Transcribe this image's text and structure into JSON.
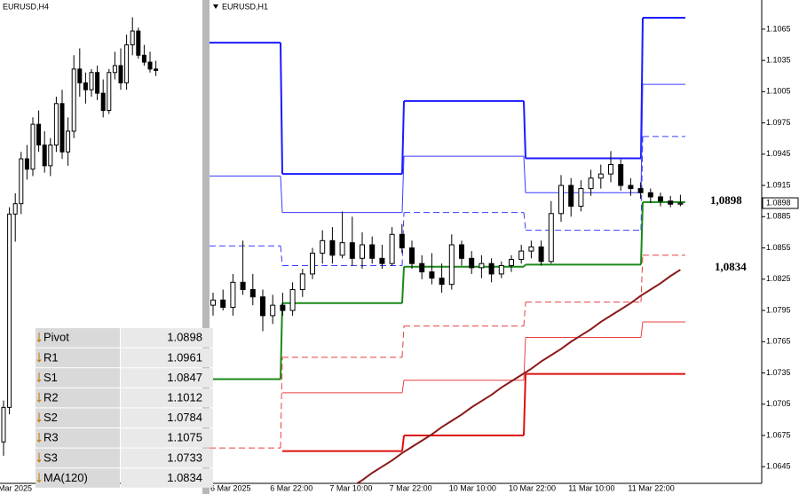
{
  "chart_data": [
    {
      "type": "candlestick",
      "title": "EURUSD,H4",
      "categories": [
        "Mar 2025",
        null,
        null,
        null,
        null,
        null,
        null,
        null,
        null,
        null,
        null,
        null,
        null,
        null,
        null,
        null,
        null,
        null,
        null,
        null,
        null,
        null,
        null,
        null,
        null,
        null,
        null
      ],
      "open": [
        1.036,
        1.041,
        1.069,
        1.0705,
        1.077,
        1.0755,
        1.082,
        1.079,
        1.076,
        1.079,
        1.085,
        1.078,
        1.081,
        1.09,
        1.088,
        1.087,
        1.0895,
        1.0865,
        1.084,
        1.0895,
        1.0905,
        1.088,
        1.0935,
        1.0955,
        1.092,
        1.091,
        1.09
      ],
      "high": [
        1.042,
        1.07,
        1.072,
        1.078,
        1.079,
        1.083,
        1.084,
        1.081,
        1.08,
        1.086,
        1.087,
        1.083,
        1.092,
        1.093,
        1.0895,
        1.09,
        1.0905,
        1.0885,
        1.09,
        1.0925,
        1.093,
        1.095,
        1.0975,
        1.096,
        1.0935,
        1.0925,
        1.0912
      ],
      "low": [
        1.034,
        1.04,
        1.065,
        1.069,
        1.074,
        1.0745,
        1.078,
        1.075,
        1.0745,
        1.078,
        1.077,
        1.076,
        1.08,
        1.086,
        1.085,
        1.086,
        1.0855,
        1.083,
        1.0835,
        1.0885,
        1.087,
        1.087,
        1.092,
        1.0915,
        1.0905,
        1.0895,
        1.089
      ],
      "close": [
        1.041,
        1.069,
        1.0705,
        1.077,
        1.0755,
        1.082,
        1.079,
        1.076,
        1.079,
        1.085,
        1.078,
        1.081,
        1.09,
        1.088,
        1.087,
        1.0895,
        1.0865,
        1.084,
        1.0895,
        1.0905,
        1.088,
        1.0935,
        1.0955,
        1.092,
        1.091,
        1.09,
        1.0898
      ],
      "ylim": [
        1.03,
        1.1
      ]
    },
    {
      "type": "candlestick",
      "title": "EURUSD,H1",
      "categories": [
        "6 Mar 2025",
        null,
        null,
        null,
        null,
        null,
        "6 Mar 22:00",
        null,
        null,
        null,
        null,
        null,
        "7 Mar 10:00",
        null,
        null,
        null,
        null,
        null,
        "7 Mar 22:00",
        null,
        null,
        null,
        null,
        null,
        "10 Mar 10:00",
        null,
        null,
        null,
        null,
        null,
        "10 Mar 22:00",
        null,
        null,
        null,
        null,
        null,
        "11 Mar 10:00",
        null,
        null,
        null,
        null,
        null,
        "11 Mar 22:00",
        null,
        null,
        null,
        null,
        null
      ],
      "open": [
        1.08,
        1.0805,
        1.0798,
        1.0822,
        1.0815,
        1.0808,
        1.079,
        1.08,
        1.0795,
        1.0815,
        1.083,
        1.085,
        1.0862,
        1.0848,
        1.086,
        1.0845,
        1.0858,
        1.0845,
        1.084,
        1.0868,
        1.0855,
        1.084,
        1.0832,
        1.0826,
        1.082,
        1.0858,
        1.0845,
        1.0836,
        1.084,
        1.083,
        1.0838,
        1.0844,
        1.0852,
        1.0856,
        1.0842,
        1.0888,
        1.0915,
        1.0895,
        1.0912,
        1.0922,
        1.0926,
        1.0935,
        1.0915,
        1.0912,
        1.0908,
        1.0904,
        1.09,
        1.0897
      ],
      "high": [
        1.0812,
        1.0815,
        1.083,
        1.0862,
        1.083,
        1.0815,
        1.081,
        1.0812,
        1.0822,
        1.0835,
        1.0855,
        1.0872,
        1.0875,
        1.089,
        1.0885,
        1.087,
        1.0866,
        1.0858,
        1.0875,
        1.0878,
        1.0862,
        1.0848,
        1.085,
        1.084,
        1.0868,
        1.0862,
        1.0852,
        1.0848,
        1.0845,
        1.0842,
        1.0848,
        1.0858,
        1.0862,
        1.0862,
        1.09,
        1.0925,
        1.0922,
        1.092,
        1.093,
        1.0935,
        1.0948,
        1.094,
        1.0922,
        1.0918,
        1.0912,
        1.0908,
        1.0905,
        1.0906
      ],
      "low": [
        1.079,
        1.0795,
        1.079,
        1.081,
        1.08,
        1.0775,
        1.0782,
        1.079,
        1.079,
        1.0808,
        1.0825,
        1.084,
        1.084,
        1.0845,
        1.0838,
        1.0835,
        1.084,
        1.0835,
        1.0838,
        1.085,
        1.0835,
        1.0825,
        1.082,
        1.0812,
        1.0815,
        1.0838,
        1.083,
        1.0826,
        1.0822,
        1.0826,
        1.0832,
        1.084,
        1.0845,
        1.0838,
        1.084,
        1.088,
        1.0885,
        1.089,
        1.0905,
        1.0912,
        1.0918,
        1.091,
        1.0905,
        1.0902,
        1.0898,
        1.0895,
        1.0894,
        1.0895
      ],
      "close": [
        1.0805,
        1.0798,
        1.0822,
        1.0815,
        1.0808,
        1.079,
        1.08,
        1.0795,
        1.0815,
        1.083,
        1.085,
        1.0862,
        1.0848,
        1.086,
        1.0845,
        1.0858,
        1.0845,
        1.084,
        1.0868,
        1.0855,
        1.084,
        1.0832,
        1.0826,
        1.082,
        1.0858,
        1.0845,
        1.0836,
        1.084,
        1.083,
        1.0838,
        1.0844,
        1.0852,
        1.0856,
        1.0842,
        1.0888,
        1.0915,
        1.0895,
        1.0912,
        1.0922,
        1.0926,
        1.0935,
        1.0915,
        1.0912,
        1.0908,
        1.0904,
        1.09,
        1.0897,
        1.0898
      ],
      "ylim": [
        1.0629,
        1.1093
      ],
      "yticks": [
        1.0645,
        1.0675,
        1.0705,
        1.0735,
        1.0765,
        1.0795,
        1.0825,
        1.0855,
        1.0885,
        1.0915,
        1.0945,
        1.0975,
        1.1005,
        1.1035,
        1.1065
      ],
      "levels": [
        {
          "color": "#1a1aff",
          "width": 2,
          "dashed": false,
          "values": [
            1.1052,
            1.0926,
            1.0996,
            1.0941,
            1.1076
          ]
        },
        {
          "color": "#3a3aff",
          "width": 1,
          "dashed": false,
          "values": [
            1.0924,
            1.0889,
            1.0943,
            1.0908,
            1.1012
          ]
        },
        {
          "color": "#3a3aff",
          "width": 1,
          "dashed": true,
          "values": [
            1.0857,
            1.0838,
            1.0889,
            1.0872,
            1.0962
          ]
        },
        {
          "color": "#1a8a1a",
          "width": 2,
          "dashed": false,
          "values": [
            1.0729,
            1.0802,
            1.0837,
            1.0839,
            1.0899
          ]
        },
        {
          "color": "#e84040",
          "width": 1,
          "dashed": true,
          "values": [
            1.0663,
            1.075,
            1.078,
            1.0803,
            1.0848
          ]
        },
        {
          "color": "#e84040",
          "width": 1,
          "dashed": false,
          "values": [
            null,
            1.0716,
            1.0728,
            1.0769,
            1.0784
          ]
        },
        {
          "color": "#dd1010",
          "width": 2,
          "dashed": false,
          "values": [
            null,
            1.066,
            1.0675,
            1.0734,
            1.0734
          ]
        }
      ],
      "ma": {
        "color": "#8b1a1a",
        "values": [
          null,
          null,
          null,
          null,
          null,
          null,
          null,
          null,
          null,
          null,
          null,
          null,
          null,
          null,
          1.0626,
          1.0632,
          1.0639,
          1.0645,
          1.0651,
          1.0658,
          1.0664,
          1.067,
          1.0676,
          1.0683,
          1.0689,
          1.0695,
          1.0702,
          1.0708,
          1.0714,
          1.0721,
          1.0727,
          1.0733,
          1.0739,
          1.0746,
          1.0752,
          1.0758,
          1.0765,
          1.0771,
          1.0777,
          1.0784,
          1.079,
          1.0796,
          1.0802,
          1.0809,
          1.0815,
          1.0821,
          1.0828,
          1.0834
        ]
      },
      "last_price": 1.0898,
      "annotations": [
        {
          "value": 1.0898,
          "label": "1,0898"
        },
        {
          "value": 1.0834,
          "label": "1,0834"
        }
      ]
    }
  ],
  "pivot_table": {
    "rows": [
      [
        "Pivot",
        1.0898
      ],
      [
        "R1",
        1.0961
      ],
      [
        "S1",
        1.0847
      ],
      [
        "R2",
        1.1012
      ],
      [
        "S2",
        1.0784
      ],
      [
        "R3",
        1.1075
      ],
      [
        "S3",
        1.0733
      ],
      [
        "MA(120)",
        1.0834
      ]
    ]
  }
}
